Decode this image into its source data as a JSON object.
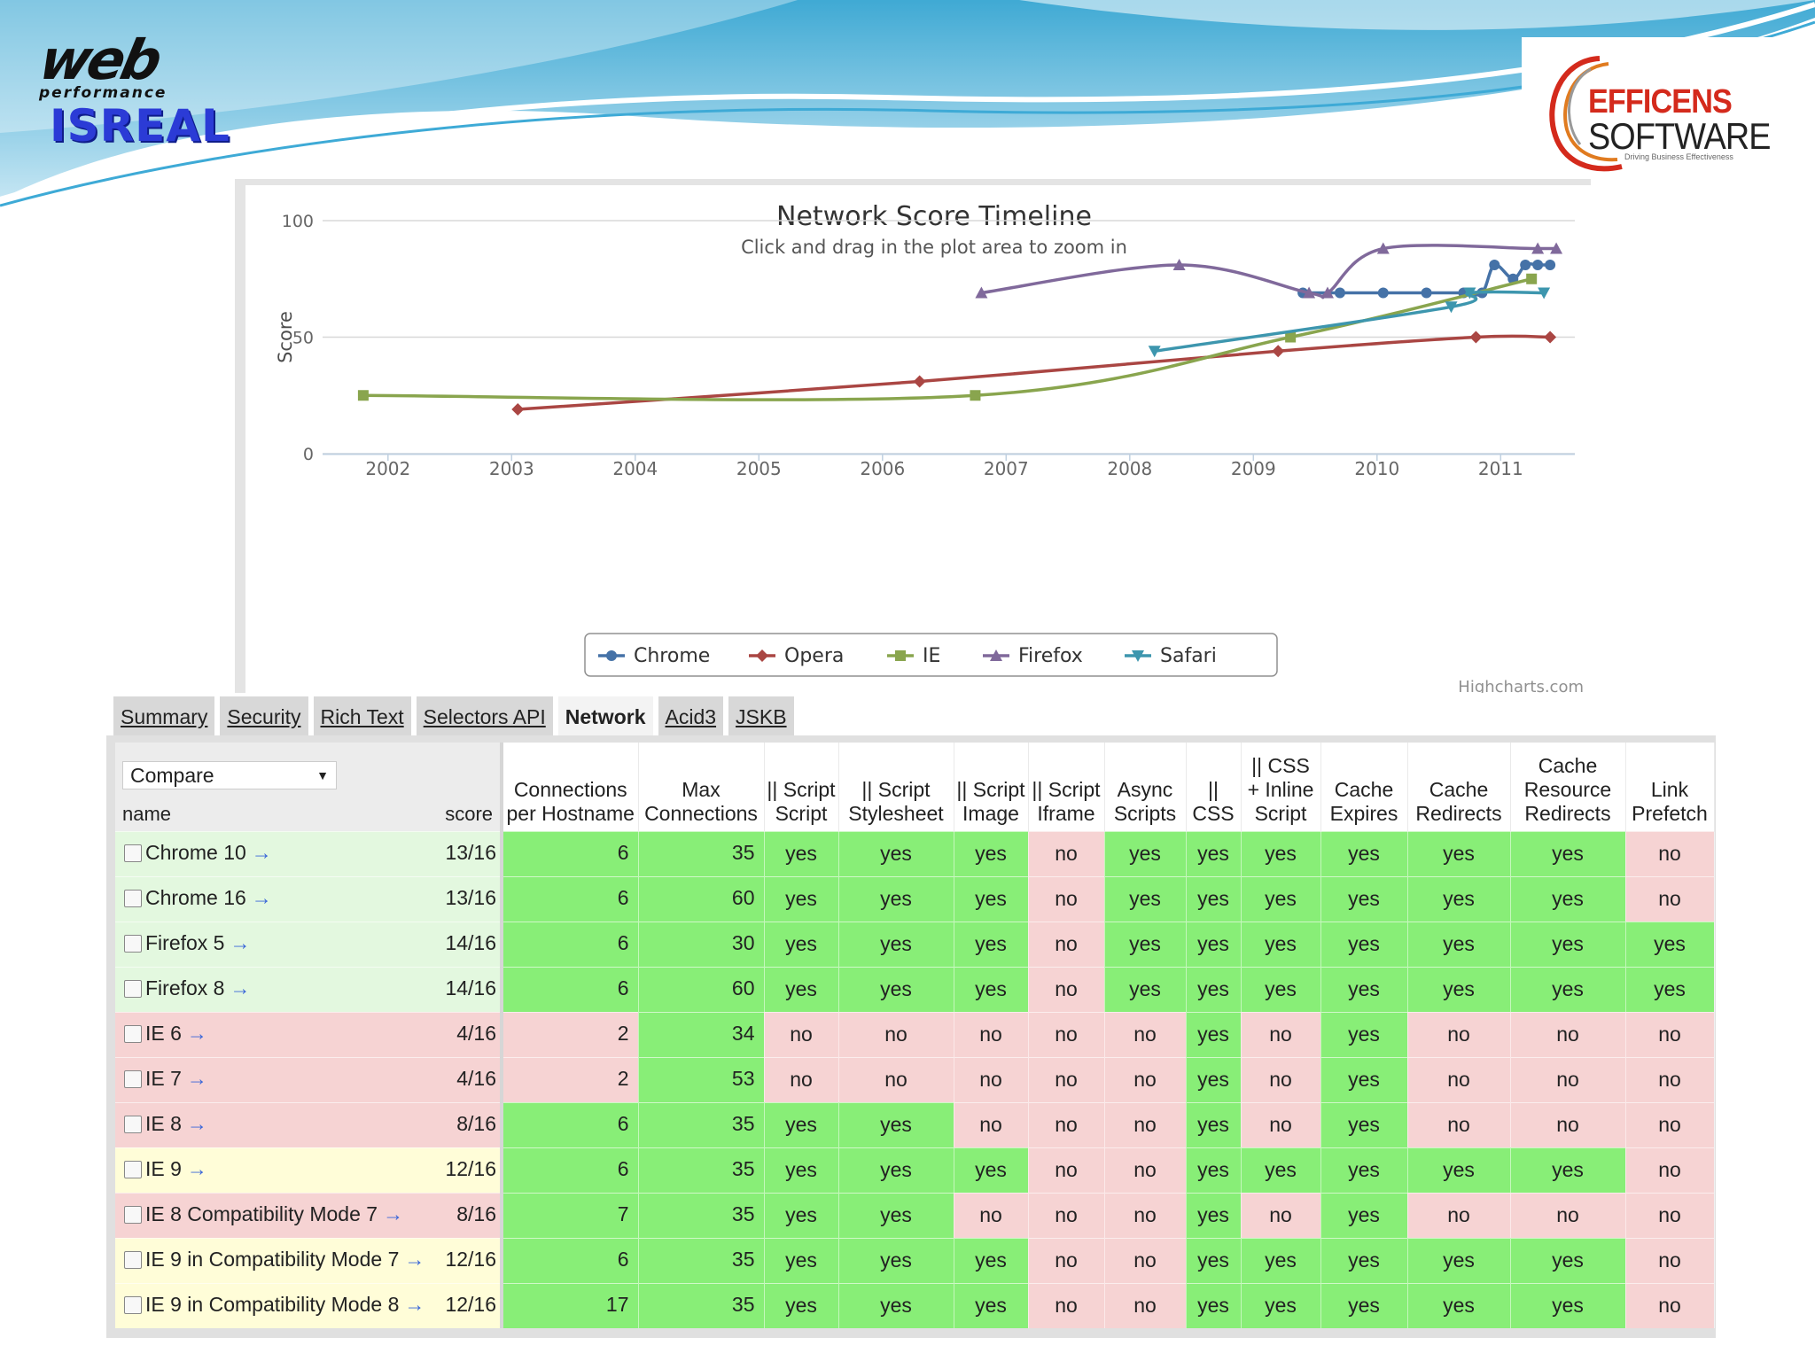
{
  "header": {
    "logo_web_main": "web",
    "logo_web_sub": "performance",
    "logo_web_country": "ISREAL",
    "logo_eff_line1": "EFFICENS",
    "logo_eff_line2": "SOFTWARE",
    "logo_eff_tagline": "Driving Business Effectiveness"
  },
  "colors": {
    "Chrome": "#4572a7",
    "Opera": "#aa4643",
    "IE": "#89a54e",
    "Firefox": "#80699b",
    "Safari": "#3d96ae",
    "pass": "#88ee77",
    "fail": "#f6d3d3"
  },
  "chart_data": {
    "type": "line",
    "title": "Network Score Timeline",
    "subtitle": "Click and drag in the plot area to zoom in",
    "ylabel": "Score",
    "xlabel": "",
    "xlim": [
      2001.6,
      2011.6
    ],
    "ylim": [
      0,
      100
    ],
    "yticks": [
      0,
      50,
      100
    ],
    "xticks": [
      "2002",
      "2003",
      "2004",
      "2005",
      "2006",
      "2007",
      "2008",
      "2009",
      "2010",
      "2011"
    ],
    "legend_position": "bottom",
    "credits": "Highcharts.com",
    "grid": true,
    "series": [
      {
        "name": "Chrome",
        "marker": "circle",
        "points": [
          [
            2009.4,
            69
          ],
          [
            2009.7,
            69
          ],
          [
            2010.05,
            69
          ],
          [
            2010.4,
            69
          ],
          [
            2010.7,
            69
          ],
          [
            2010.85,
            69
          ],
          [
            2010.95,
            81
          ],
          [
            2011.1,
            75
          ],
          [
            2011.2,
            81
          ],
          [
            2011.3,
            81
          ],
          [
            2011.4,
            81
          ]
        ]
      },
      {
        "name": "Opera",
        "marker": "diamond",
        "points": [
          [
            2003.05,
            19
          ],
          [
            2006.3,
            31
          ],
          [
            2009.2,
            44
          ],
          [
            2010.8,
            50
          ],
          [
            2011.4,
            50
          ]
        ]
      },
      {
        "name": "IE",
        "marker": "square",
        "points": [
          [
            2001.8,
            25
          ],
          [
            2006.75,
            25
          ],
          [
            2009.3,
            50
          ],
          [
            2011.25,
            75
          ]
        ]
      },
      {
        "name": "Firefox",
        "marker": "triangle",
        "points": [
          [
            2006.8,
            69
          ],
          [
            2008.4,
            81
          ],
          [
            2009.45,
            69
          ],
          [
            2009.6,
            69
          ],
          [
            2010.05,
            88
          ],
          [
            2011.3,
            88
          ],
          [
            2011.45,
            88
          ]
        ]
      },
      {
        "name": "Safari",
        "marker": "triangle-down",
        "points": [
          [
            2008.2,
            44
          ],
          [
            2010.6,
            63
          ],
          [
            2010.75,
            69
          ],
          [
            2011.35,
            69
          ]
        ]
      }
    ]
  },
  "tabs": [
    "Summary",
    "Security",
    "Rich Text",
    "Selectors API",
    "Network",
    "Acid3",
    "JSKB"
  ],
  "active_tab": "Network",
  "table": {
    "compare_label": "Compare",
    "name_header": "name",
    "score_header": "score",
    "columns": [
      "Connections per Hostname",
      "Max Connections",
      "|| Script Script",
      "|| Script Stylesheet",
      "|| Script Image",
      "|| Script Iframe",
      "Async Scripts",
      "|| CSS",
      "|| CSS + Inline Script",
      "Cache Expires",
      "Cache Redirects",
      "Cache Resource Redirects",
      "Link Prefetch"
    ],
    "rows": [
      {
        "name": "Chrome 10",
        "score": "13/16",
        "row_color": "lg",
        "cells": [
          "6",
          "35",
          "yes",
          "yes",
          "yes",
          "no",
          "yes",
          "yes",
          "yes",
          "yes",
          "yes",
          "yes",
          "no"
        ],
        "cell_colors": [
          "g",
          "g",
          "g",
          "g",
          "g",
          "r",
          "g",
          "g",
          "g",
          "g",
          "g",
          "g",
          "r"
        ]
      },
      {
        "name": "Chrome 16",
        "score": "13/16",
        "row_color": "lg",
        "cells": [
          "6",
          "60",
          "yes",
          "yes",
          "yes",
          "no",
          "yes",
          "yes",
          "yes",
          "yes",
          "yes",
          "yes",
          "no"
        ],
        "cell_colors": [
          "g",
          "g",
          "g",
          "g",
          "g",
          "r",
          "g",
          "g",
          "g",
          "g",
          "g",
          "g",
          "r"
        ]
      },
      {
        "name": "Firefox 5",
        "score": "14/16",
        "row_color": "lg",
        "cells": [
          "6",
          "30",
          "yes",
          "yes",
          "yes",
          "no",
          "yes",
          "yes",
          "yes",
          "yes",
          "yes",
          "yes",
          "yes"
        ],
        "cell_colors": [
          "g",
          "g",
          "g",
          "g",
          "g",
          "r",
          "g",
          "g",
          "g",
          "g",
          "g",
          "g",
          "g"
        ]
      },
      {
        "name": "Firefox 8",
        "score": "14/16",
        "row_color": "lg",
        "cells": [
          "6",
          "60",
          "yes",
          "yes",
          "yes",
          "no",
          "yes",
          "yes",
          "yes",
          "yes",
          "yes",
          "yes",
          "yes"
        ],
        "cell_colors": [
          "g",
          "g",
          "g",
          "g",
          "g",
          "r",
          "g",
          "g",
          "g",
          "g",
          "g",
          "g",
          "g"
        ]
      },
      {
        "name": "IE 6",
        "score": "4/16",
        "row_color": "lr",
        "cells": [
          "2",
          "34",
          "no",
          "no",
          "no",
          "no",
          "no",
          "yes",
          "no",
          "yes",
          "no",
          "no",
          "no"
        ],
        "cell_colors": [
          "r",
          "g",
          "r",
          "r",
          "r",
          "r",
          "r",
          "g",
          "r",
          "g",
          "r",
          "r",
          "r"
        ]
      },
      {
        "name": "IE 7",
        "score": "4/16",
        "row_color": "lr",
        "cells": [
          "2",
          "53",
          "no",
          "no",
          "no",
          "no",
          "no",
          "yes",
          "no",
          "yes",
          "no",
          "no",
          "no"
        ],
        "cell_colors": [
          "r",
          "g",
          "r",
          "r",
          "r",
          "r",
          "r",
          "g",
          "r",
          "g",
          "r",
          "r",
          "r"
        ]
      },
      {
        "name": "IE 8",
        "score": "8/16",
        "row_color": "lr",
        "cells": [
          "6",
          "35",
          "yes",
          "yes",
          "no",
          "no",
          "no",
          "yes",
          "no",
          "yes",
          "no",
          "no",
          "no"
        ],
        "cell_colors": [
          "g",
          "g",
          "g",
          "g",
          "r",
          "r",
          "r",
          "g",
          "r",
          "g",
          "r",
          "r",
          "r"
        ]
      },
      {
        "name": "IE 9",
        "score": "12/16",
        "row_color": "ly",
        "cells": [
          "6",
          "35",
          "yes",
          "yes",
          "yes",
          "no",
          "no",
          "yes",
          "yes",
          "yes",
          "yes",
          "yes",
          "no"
        ],
        "cell_colors": [
          "g",
          "g",
          "g",
          "g",
          "g",
          "r",
          "r",
          "g",
          "g",
          "g",
          "g",
          "g",
          "r"
        ]
      },
      {
        "name": "IE 8 Compatibility Mode 7",
        "score": "8/16",
        "row_color": "lr",
        "cells": [
          "7",
          "35",
          "yes",
          "yes",
          "no",
          "no",
          "no",
          "yes",
          "no",
          "yes",
          "no",
          "no",
          "no"
        ],
        "cell_colors": [
          "g",
          "g",
          "g",
          "g",
          "r",
          "r",
          "r",
          "g",
          "r",
          "g",
          "r",
          "r",
          "r"
        ]
      },
      {
        "name": "IE 9 in Compatibility Mode 7",
        "score": "12/16",
        "row_color": "ly",
        "cells": [
          "6",
          "35",
          "yes",
          "yes",
          "yes",
          "no",
          "no",
          "yes",
          "yes",
          "yes",
          "yes",
          "yes",
          "no"
        ],
        "cell_colors": [
          "g",
          "g",
          "g",
          "g",
          "g",
          "r",
          "r",
          "g",
          "g",
          "g",
          "g",
          "g",
          "r"
        ]
      },
      {
        "name": "IE 9 in Compatibility Mode 8",
        "score": "12/16",
        "row_color": "ly",
        "cells": [
          "17",
          "35",
          "yes",
          "yes",
          "yes",
          "no",
          "no",
          "yes",
          "yes",
          "yes",
          "yes",
          "yes",
          "no"
        ],
        "cell_colors": [
          "g",
          "g",
          "g",
          "g",
          "g",
          "r",
          "r",
          "g",
          "g",
          "g",
          "g",
          "g",
          "r"
        ]
      }
    ]
  }
}
